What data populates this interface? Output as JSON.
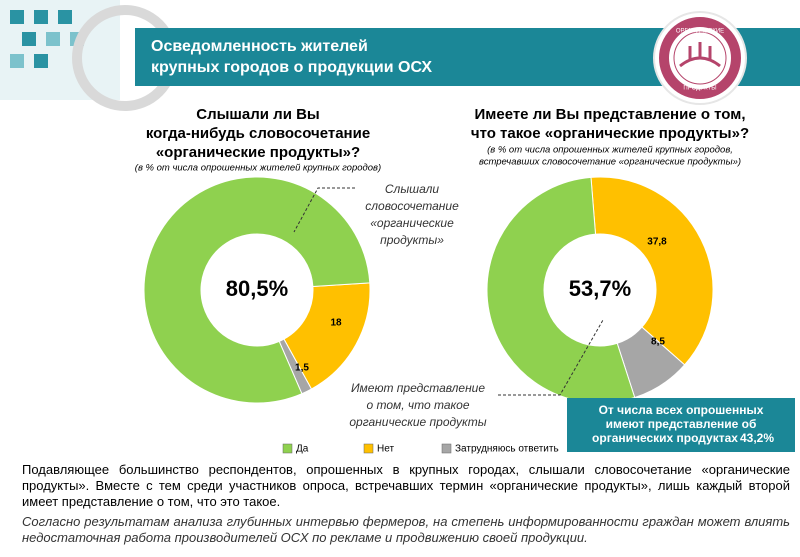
{
  "header": {
    "title": [
      "Осведомленность жителей",
      "крупных городов о продукции ОСХ"
    ],
    "logo_top": "ОРГАНИЧЕСКИЕ",
    "logo_bottom": "ПРОДУКТЫ"
  },
  "chart_data": [
    {
      "type": "donut",
      "title": [
        "Слышали ли Вы",
        "когда-нибудь словосочетание",
        "«органические продукты»?"
      ],
      "subtitle": [
        "(в % от числа опрошенных жителей крупных городов)"
      ],
      "categories": [
        "Да",
        "Нет",
        "Затрудняюсь ответить"
      ],
      "colors": [
        "#8fd14f",
        "#ffc000",
        "#a6a6a6"
      ],
      "values": [
        80.5,
        18,
        1.5
      ],
      "value_labels": [
        "80,5%",
        "18",
        "1,5"
      ],
      "annotation": [
        "Слышали",
        "словосочетание",
        "«органические",
        "продукты»"
      ]
    },
    {
      "type": "donut",
      "title": [
        "Имеете ли Вы представление о том,",
        "что такое «органические продукты»?"
      ],
      "subtitle": [
        "(в % от числа опрошенных жителей крупных городов,",
        "встречавших словосочетание «органические продукты»)"
      ],
      "colors": [
        "#8fd14f",
        "#ffc000",
        "#a6a6a6"
      ],
      "values": [
        53.7,
        37.8,
        8.5
      ],
      "value_labels": [
        "53,7%",
        "37,8",
        "8,5"
      ],
      "annotation": [
        "Имеют представление",
        "о том, что такое",
        "органические продукты"
      ],
      "box": {
        "text": [
          "От числа всех опрошенных",
          "имеют представление об",
          "органических продуктах"
        ],
        "value": 43.2,
        "value_label": "43,2%"
      }
    }
  ],
  "footer": {
    "paragraph": "Подавляющее большинство респондентов, опрошенных в крупных городах, слышали словосочетание «органические продукты». Вместе с тем среди участников опроса, встречавших термин «органические продукты», лишь каждый второй имеет представление о том, что это такое.",
    "note": "Согласно результатам анализа глубинных интервью фермеров, на степень информированности граждан может влиять недостаточная работа производителей ОСХ по рекламе и продвижению своей продукции."
  }
}
